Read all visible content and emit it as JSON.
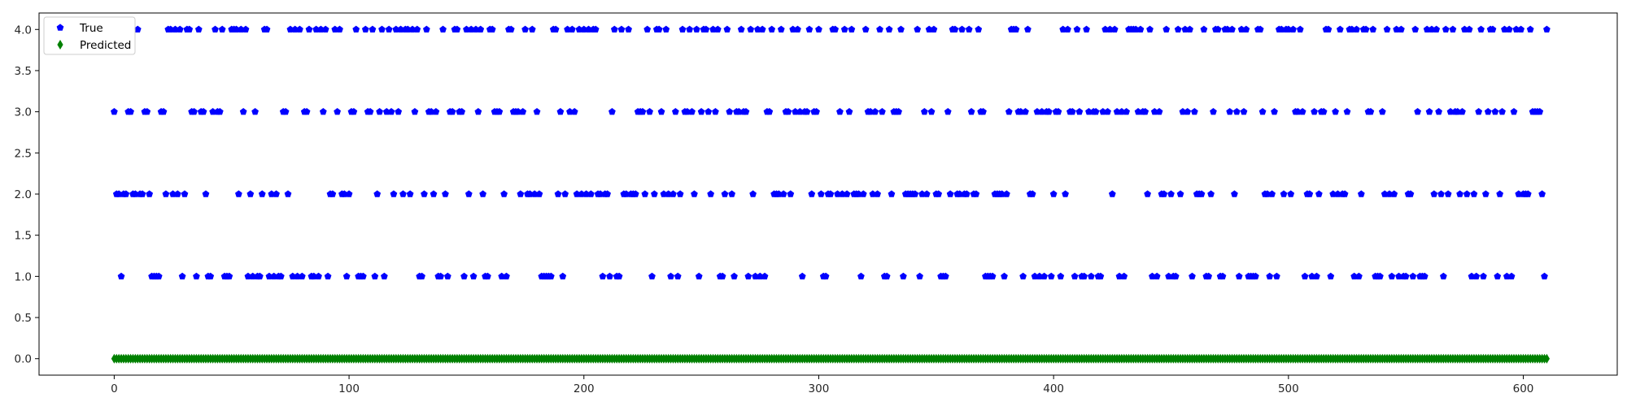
{
  "chart_data": {
    "type": "scatter",
    "title": "",
    "xlabel": "",
    "ylabel": "",
    "xlim": [
      -32,
      640
    ],
    "ylim": [
      -0.2,
      4.2
    ],
    "xticks": [
      0,
      100,
      200,
      300,
      400,
      500,
      600
    ],
    "xtick_labels": [
      "0",
      "100",
      "200",
      "300",
      "400",
      "500",
      "600"
    ],
    "yticks": [
      0.0,
      0.5,
      1.0,
      1.5,
      2.0,
      2.5,
      3.0,
      3.5,
      4.0
    ],
    "ytick_labels": [
      "0.0",
      "0.5",
      "1.0",
      "1.5",
      "2.0",
      "2.5",
      "3.0",
      "3.5",
      "4.0"
    ],
    "grid": false,
    "legend_position": "top-left",
    "series": [
      {
        "name": "True",
        "marker": "pentagon",
        "color": "#0000ff",
        "x": [
          0,
          1,
          2,
          3,
          4,
          5,
          6,
          7,
          8,
          9,
          10,
          11,
          12,
          13,
          14,
          15,
          16,
          17,
          18,
          19,
          20,
          21,
          22,
          23,
          24,
          25,
          26,
          27,
          28,
          29,
          30,
          31,
          32,
          33,
          34,
          35,
          36,
          37,
          38,
          39,
          40,
          41,
          42,
          43,
          44,
          45,
          46,
          47,
          48,
          49,
          50,
          51,
          52,
          53,
          54,
          55,
          56,
          57,
          58,
          59,
          60,
          61,
          62,
          63,
          64,
          65,
          66,
          67,
          68,
          69,
          70,
          71,
          72,
          73,
          74,
          75,
          76,
          77,
          78,
          79,
          80,
          81,
          82,
          83,
          84,
          85,
          86,
          87,
          88,
          89,
          90,
          91,
          92,
          93,
          94,
          95,
          96,
          97,
          98,
          99,
          100,
          101,
          102,
          103,
          104,
          105,
          106,
          107,
          108,
          109,
          110,
          111,
          112,
          113,
          114,
          115,
          116,
          117,
          118,
          119,
          120,
          121,
          122,
          123,
          124,
          125,
          126,
          127,
          128,
          129,
          130,
          131,
          132,
          133,
          134,
          135,
          136,
          137,
          138,
          139,
          140,
          141,
          142,
          143,
          144,
          145,
          146,
          147,
          148,
          149,
          150,
          151,
          152,
          153,
          154,
          155,
          156,
          157,
          158,
          159,
          160,
          161,
          162,
          163,
          164,
          165,
          166,
          167,
          168,
          169,
          170,
          171,
          172,
          173,
          174,
          175,
          176,
          177,
          178,
          179,
          180,
          181,
          182,
          183,
          184,
          185,
          186,
          187,
          188,
          189,
          190,
          191,
          192,
          193,
          194,
          195,
          196,
          197,
          198,
          199,
          200,
          201,
          202,
          203,
          204,
          205,
          206,
          207,
          208,
          209,
          210,
          211,
          212,
          213,
          214,
          215,
          216,
          217,
          218,
          219,
          220,
          221,
          222,
          223,
          224,
          225,
          226,
          227,
          228,
          229,
          230,
          231,
          232,
          233,
          234,
          235,
          236,
          237,
          238,
          239,
          240,
          241,
          242,
          243,
          244,
          245,
          246,
          247,
          248,
          249,
          250,
          251,
          252,
          253,
          254,
          255,
          256,
          257,
          258,
          259,
          260,
          261,
          262,
          263,
          264,
          265,
          266,
          267,
          268,
          269,
          270,
          271,
          272,
          273,
          274,
          275,
          276,
          277,
          278,
          279,
          280,
          281,
          282,
          283,
          284,
          285,
          286,
          287,
          288,
          289,
          290,
          291,
          292,
          293,
          294,
          295,
          296,
          297,
          298,
          299,
          300,
          301,
          302,
          303,
          304,
          305,
          306,
          307,
          308,
          309,
          310,
          311,
          312,
          313,
          314,
          315,
          316,
          317,
          318,
          319,
          320,
          321,
          322,
          323,
          324,
          325,
          326,
          327,
          328,
          329,
          330,
          331,
          332,
          333,
          334,
          335,
          336,
          337,
          338,
          339,
          340,
          341,
          342,
          343,
          344,
          345,
          346,
          347,
          348,
          349,
          350,
          351,
          352,
          353,
          354,
          355,
          356,
          357,
          358,
          359,
          360,
          361,
          362,
          363,
          364,
          365,
          366,
          367,
          368,
          369,
          370,
          371,
          372,
          373,
          374,
          375,
          376,
          377,
          378,
          379,
          380,
          381,
          382,
          383,
          384,
          385,
          386,
          387,
          388,
          389,
          390,
          391,
          392,
          393,
          394,
          395,
          396,
          397,
          398,
          399,
          400,
          401,
          402,
          403,
          404,
          405,
          406,
          407,
          408,
          409,
          410,
          411,
          412,
          413,
          414,
          415,
          416,
          417,
          418,
          419,
          420,
          421,
          422,
          423,
          424,
          425,
          426,
          427,
          428,
          429,
          430,
          431,
          432,
          433,
          434,
          435,
          436,
          437,
          438,
          439,
          440,
          441,
          442,
          443,
          444,
          445,
          446,
          447,
          448,
          449,
          450,
          451,
          452,
          453,
          454,
          455,
          456,
          457,
          458,
          459,
          460,
          461,
          462,
          463,
          464,
          465,
          466,
          467,
          468,
          469,
          470,
          471,
          472,
          473,
          474,
          475,
          476,
          477,
          478,
          479,
          480,
          481,
          482,
          483,
          484,
          485,
          486,
          487,
          488,
          489,
          490,
          491,
          492,
          493,
          494,
          495,
          496,
          497,
          498,
          499,
          500,
          501,
          502,
          503,
          504,
          505,
          506,
          507,
          508,
          509,
          510,
          511,
          512,
          513,
          514,
          515,
          516,
          517,
          518,
          519,
          520,
          521,
          522,
          523,
          524,
          525,
          526,
          527,
          528,
          529,
          530,
          531,
          532,
          533,
          534,
          535,
          536,
          537,
          538,
          539,
          540,
          541,
          542,
          543,
          544,
          545,
          546,
          547,
          548,
          549,
          550,
          551,
          552,
          553,
          554,
          555,
          556,
          557,
          558,
          559,
          560,
          561,
          562,
          563,
          564,
          565,
          566,
          567,
          568,
          569,
          570,
          571,
          572,
          573,
          574,
          575,
          576,
          577,
          578,
          579,
          580,
          581,
          582,
          583,
          584,
          585,
          586,
          587,
          588,
          589,
          590,
          591,
          592,
          593,
          594,
          595,
          596,
          597,
          598,
          599,
          600,
          601,
          602,
          603,
          604,
          605,
          606,
          607,
          608,
          609,
          610
        ],
        "y": [
          3,
          2,
          2,
          1,
          2,
          2,
          3,
          3,
          2,
          2,
          4,
          2,
          2,
          3,
          3,
          2,
          1,
          1,
          1,
          1,
          3,
          3,
          2,
          4,
          4,
          2,
          4,
          2,
          4,
          1,
          2,
          4,
          4,
          3,
          3,
          1,
          4,
          3,
          3,
          2,
          1,
          1,
          3,
          4,
          3,
          3,
          4,
          1,
          1,
          1,
          4,
          4,
          4,
          2,
          4,
          3,
          4,
          1,
          2,
          1,
          3,
          1,
          1,
          2,
          4,
          4,
          1,
          2,
          1,
          2,
          1,
          1,
          3,
          3,
          2,
          4,
          1,
          4,
          1,
          4,
          1,
          3,
          3,
          4,
          1,
          1,
          4,
          1,
          4,
          3,
          4,
          1,
          2,
          2,
          4,
          3,
          4,
          2,
          2,
          1,
          2,
          3,
          3,
          4,
          1,
          1,
          1,
          4,
          3,
          3,
          4,
          1,
          2,
          3,
          4,
          1,
          3,
          4,
          3,
          2,
          4,
          3,
          4,
          2,
          4,
          4,
          2,
          4,
          3,
          4,
          1,
          1,
          2,
          4,
          3,
          3,
          2,
          3,
          1,
          1,
          4,
          2,
          1,
          3,
          3,
          4,
          4,
          3,
          3,
          1,
          4,
          2,
          4,
          1,
          4,
          3,
          4,
          2,
          1,
          1,
          4,
          4,
          3,
          3,
          3,
          1,
          2,
          1,
          4,
          4,
          3,
          3,
          3,
          2,
          3,
          4,
          2,
          2,
          4,
          2,
          3,
          2,
          1,
          1,
          1,
          1,
          1,
          4,
          4,
          2,
          3,
          1,
          2,
          4,
          3,
          4,
          3,
          2,
          4,
          2,
          4,
          2,
          4,
          2,
          4,
          4,
          2,
          2,
          1,
          2,
          2,
          1,
          3,
          4,
          1,
          1,
          4,
          2,
          2,
          4,
          2,
          2,
          2,
          3,
          3,
          3,
          2,
          4,
          3,
          1,
          2,
          4,
          4,
          3,
          2,
          4,
          2,
          1,
          2,
          3,
          1,
          2,
          4,
          3,
          3,
          4,
          3,
          2,
          4,
          1,
          3,
          4,
          4,
          3,
          2,
          4,
          3,
          4,
          1,
          1,
          2,
          4,
          3,
          2,
          1,
          3,
          3,
          4,
          3,
          3,
          1,
          4,
          2,
          1,
          4,
          1,
          4,
          1,
          3,
          3,
          4,
          2,
          2,
          2,
          4,
          2,
          3,
          3,
          2,
          4,
          3,
          4,
          3,
          1,
          3,
          3,
          4,
          2,
          3,
          3,
          4,
          2,
          1,
          1,
          2,
          2,
          4,
          4,
          2,
          3,
          2,
          4,
          2,
          3,
          4,
          2,
          2,
          2,
          1,
          2,
          4,
          3,
          3,
          2,
          3,
          2,
          4,
          3,
          1,
          1,
          4,
          2,
          3,
          3,
          3,
          4,
          1,
          2,
          2,
          2,
          2,
          2,
          4,
          1,
          2,
          3,
          2,
          4,
          3,
          4,
          2,
          2,
          1,
          1,
          1,
          3,
          2,
          4,
          4,
          2,
          2,
          4,
          2,
          2,
          4,
          3,
          2,
          2,
          4,
          3,
          3,
          1,
          1,
          1,
          1,
          2,
          2,
          2,
          2,
          1,
          2,
          3,
          4,
          4,
          4,
          3,
          3,
          1,
          3,
          4,
          2,
          2,
          1,
          3,
          1,
          3,
          1,
          3,
          3,
          1,
          2,
          3,
          3,
          1,
          4,
          2,
          4,
          3,
          3,
          1,
          4,
          3,
          1,
          1,
          4,
          3,
          1,
          3,
          3,
          1,
          1,
          3,
          4,
          3,
          4,
          2,
          4,
          3,
          1,
          3,
          1,
          3,
          4,
          4,
          4,
          4,
          3,
          4,
          3,
          3,
          2,
          4,
          1,
          3,
          1,
          3,
          2,
          2,
          4,
          1,
          2,
          1,
          1,
          4,
          2,
          3,
          4,
          3,
          4,
          1,
          3,
          2,
          2,
          2,
          4,
          1,
          1,
          2,
          3,
          4,
          4,
          1,
          1,
          4,
          4,
          3,
          4,
          2,
          3,
          1,
          4,
          3,
          4,
          1,
          1,
          1,
          1,
          4,
          4,
          3,
          2,
          2,
          1,
          2,
          3,
          1,
          4,
          4,
          2,
          4,
          4,
          2,
          4,
          3,
          3,
          4,
          3,
          1,
          2,
          2,
          1,
          3,
          1,
          2,
          3,
          3,
          4,
          4,
          1,
          2,
          3,
          2,
          4,
          2,
          2,
          3,
          4,
          4,
          1,
          4,
          1,
          2,
          4,
          4,
          3,
          3,
          4,
          1,
          1,
          1,
          3,
          2,
          4,
          2,
          1,
          2,
          4,
          1,
          4,
          1,
          1,
          2,
          2,
          1,
          4,
          3,
          1,
          1,
          1,
          4,
          3,
          4,
          2,
          4,
          3,
          2,
          1,
          4,
          2,
          3,
          4,
          3,
          3,
          2,
          3,
          4,
          2,
          4,
          1,
          2,
          1,
          3,
          4,
          1,
          2,
          3,
          4,
          4,
          3,
          1,
          2,
          3,
          4,
          1,
          4,
          1,
          3,
          4,
          2,
          4,
          2,
          2,
          2,
          4,
          3,
          3,
          3,
          3,
          2,
          1,
          4
        ],
        "x_marker_count": 611
      },
      {
        "name": "Predicted",
        "marker": "diamond",
        "color": "#008000",
        "x_range": [
          0,
          610
        ],
        "y_constant": 0
      }
    ]
  }
}
